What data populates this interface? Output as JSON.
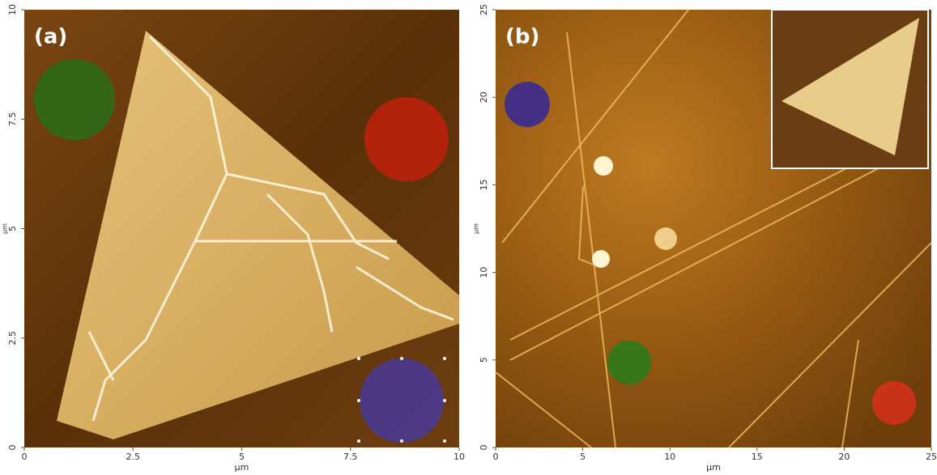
{
  "panels": [
    {
      "label": "(a)",
      "xlim": [
        0,
        10
      ],
      "ylim": [
        0,
        10
      ],
      "xticks": [
        0,
        2.5,
        5,
        7.5,
        10
      ],
      "yticks": [
        0,
        2.5,
        5,
        7.5,
        10
      ],
      "xlabel": "µm",
      "ylabel": "µm"
    },
    {
      "label": "(b)",
      "xlim": [
        0,
        25
      ],
      "ylim": [
        0,
        25
      ],
      "xticks": [
        0,
        5,
        10,
        15,
        20,
        25
      ],
      "yticks": [
        0,
        5,
        10,
        15,
        20,
        25
      ],
      "xlabel": "µm",
      "ylabel": "µm"
    }
  ]
}
